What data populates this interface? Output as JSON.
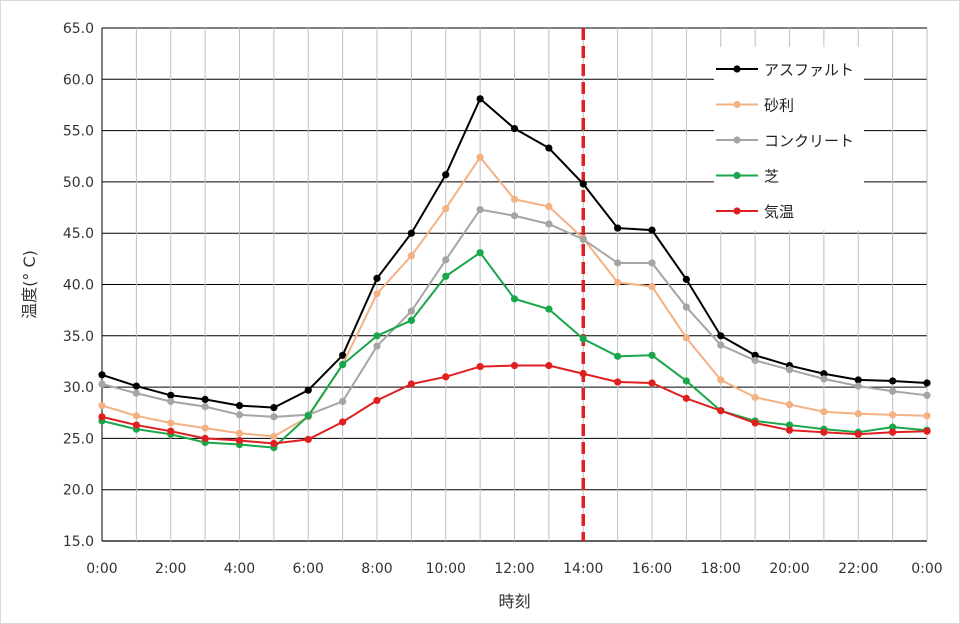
{
  "chart_data": {
    "type": "line",
    "title": "",
    "xlabel": "時刻",
    "ylabel": "温度(° C)",
    "ylim": [
      15.0,
      65.0
    ],
    "yticks": [
      "15.0",
      "20.0",
      "25.0",
      "30.0",
      "35.0",
      "40.0",
      "45.0",
      "50.0",
      "55.0",
      "60.0",
      "65.0"
    ],
    "x": [
      0,
      1,
      2,
      3,
      4,
      5,
      6,
      7,
      8,
      9,
      10,
      11,
      12,
      13,
      14,
      15,
      16,
      17,
      18,
      19,
      20,
      21,
      22,
      23,
      24
    ],
    "xticks": [
      "0:00",
      "2:00",
      "4:00",
      "6:00",
      "8:00",
      "10:00",
      "12:00",
      "14:00",
      "16:00",
      "18:00",
      "20:00",
      "22:00",
      "0:00"
    ],
    "grid": true,
    "legend_position": "top-right",
    "marker_line_x": "14:00",
    "marker_line_color": "#e02020",
    "series": [
      {
        "name": "アスファルト",
        "color": "#000000",
        "values": [
          31.2,
          30.1,
          29.2,
          28.8,
          28.2,
          28.0,
          29.7,
          33.1,
          40.6,
          45.0,
          50.7,
          58.1,
          55.2,
          53.3,
          49.8,
          45.5,
          45.3,
          40.5,
          35.0,
          33.1,
          32.1,
          31.3,
          30.7,
          30.6,
          30.4
        ]
      },
      {
        "name": "砂利",
        "color": "#f4b183",
        "values": [
          28.2,
          27.2,
          26.5,
          26.0,
          25.5,
          25.2,
          27.1,
          32.2,
          39.1,
          42.8,
          47.4,
          52.4,
          48.3,
          47.6,
          44.5,
          40.2,
          39.8,
          34.8,
          30.7,
          29.0,
          28.3,
          27.6,
          27.4,
          27.3,
          27.2
        ]
      },
      {
        "name": "コンクリート",
        "color": "#a5a5a5",
        "values": [
          30.3,
          29.4,
          28.6,
          28.1,
          27.3,
          27.1,
          27.3,
          28.6,
          34.0,
          37.4,
          42.4,
          47.3,
          46.7,
          45.9,
          44.4,
          42.1,
          42.1,
          37.8,
          34.1,
          32.6,
          31.7,
          30.8,
          30.1,
          29.6,
          29.2
        ]
      },
      {
        "name": "芝",
        "color": "#1aa64a",
        "values": [
          26.7,
          25.9,
          25.4,
          24.6,
          24.4,
          24.1,
          27.2,
          32.2,
          35.0,
          36.5,
          40.8,
          43.1,
          38.6,
          37.6,
          34.7,
          33.0,
          33.1,
          30.6,
          27.7,
          26.7,
          26.3,
          25.9,
          25.6,
          26.1,
          25.8
        ]
      },
      {
        "name": "気温",
        "color": "#e02020",
        "values": [
          27.1,
          26.3,
          25.7,
          25.0,
          24.8,
          24.5,
          24.9,
          26.6,
          28.7,
          30.3,
          31.0,
          32.0,
          32.1,
          32.1,
          31.3,
          30.5,
          30.4,
          28.9,
          27.7,
          26.5,
          25.8,
          25.6,
          25.4,
          25.6,
          25.7
        ]
      }
    ]
  }
}
